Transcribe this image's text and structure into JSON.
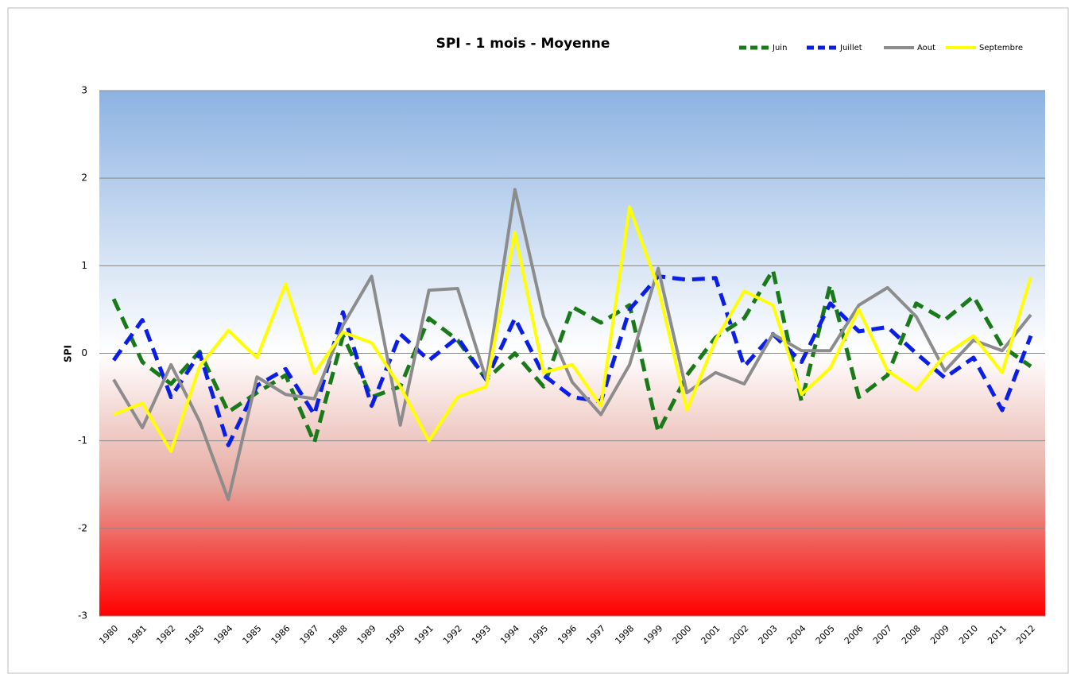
{
  "chart_data": {
    "type": "line",
    "title": "SPI - 1 mois - Moyenne",
    "y_label": "SPI",
    "categories": [
      "1980",
      "1981",
      "1982",
      "1983",
      "1984",
      "1985",
      "1986",
      "1987",
      "1988",
      "1989",
      "1990",
      "1991",
      "1992",
      "1993",
      "1994",
      "1995",
      "1996",
      "1997",
      "1998",
      "1999",
      "2000",
      "2001",
      "2002",
      "2003",
      "2004",
      "2005",
      "2006",
      "2007",
      "2008",
      "2009",
      "2010",
      "2011",
      "2012"
    ],
    "ylim": [
      -3,
      3
    ],
    "yticks": [
      -3,
      -2,
      -1,
      0,
      1,
      2,
      3
    ],
    "grid": true,
    "legend": "top-right",
    "series": [
      {
        "name": "Juin",
        "color": "#1a7a1a",
        "dashed": true,
        "values": [
          0.62,
          -0.1,
          -0.35,
          0.02,
          -0.67,
          -0.45,
          -0.25,
          -1.02,
          0.2,
          -0.5,
          -0.38,
          0.4,
          0.15,
          -0.3,
          0.0,
          -0.38,
          0.53,
          0.35,
          0.55,
          -0.9,
          -0.25,
          0.18,
          0.4,
          0.95,
          -0.55,
          0.78,
          -0.5,
          -0.25,
          0.57,
          0.38,
          0.65,
          0.08,
          -0.15
        ]
      },
      {
        "name": "Juillet",
        "color": "#0a1ee6",
        "dashed": true,
        "values": [
          -0.08,
          0.38,
          -0.5,
          0.0,
          -1.05,
          -0.37,
          -0.18,
          -0.7,
          0.47,
          -0.6,
          0.22,
          -0.08,
          0.18,
          -0.3,
          0.4,
          -0.25,
          -0.5,
          -0.55,
          0.5,
          0.88,
          0.84,
          0.86,
          -0.15,
          0.22,
          -0.1,
          0.57,
          0.25,
          0.3,
          0.0,
          -0.28,
          -0.05,
          -0.65,
          0.2
        ]
      },
      {
        "name": "Aout",
        "color": "#8c8c8c",
        "dashed": false,
        "values": [
          -0.3,
          -0.85,
          -0.13,
          -0.78,
          -1.67,
          -0.27,
          -0.47,
          -0.52,
          0.32,
          0.88,
          -0.82,
          0.72,
          0.74,
          -0.3,
          1.87,
          0.42,
          -0.33,
          -0.7,
          -0.13,
          0.97,
          -0.45,
          -0.22,
          -0.35,
          0.22,
          0.03,
          0.03,
          0.55,
          0.75,
          0.42,
          -0.2,
          0.15,
          0.03,
          0.44
        ]
      },
      {
        "name": "Septembre",
        "color": "#ffff00",
        "dashed": false,
        "values": [
          -0.7,
          -0.57,
          -1.12,
          -0.15,
          0.26,
          -0.05,
          0.79,
          -0.23,
          0.24,
          0.12,
          -0.38,
          -1.0,
          -0.5,
          -0.38,
          1.38,
          -0.22,
          -0.13,
          -0.6,
          1.67,
          0.75,
          -0.65,
          0.15,
          0.71,
          0.55,
          -0.47,
          -0.17,
          0.5,
          -0.2,
          -0.42,
          -0.02,
          0.2,
          -0.22,
          0.87
        ]
      }
    ]
  }
}
